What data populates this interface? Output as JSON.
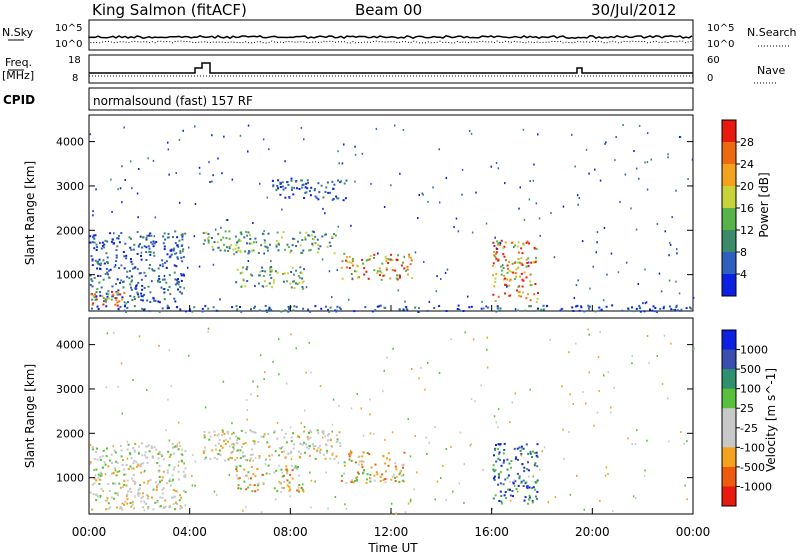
{
  "header": {
    "station": "King Salmon (fitACF)",
    "beam": "Beam 00",
    "date": "30/Jul/2012"
  },
  "side_labels": {
    "nsky": "N.Sky",
    "nsearch": "N.Search",
    "freq_line1": "Freq.",
    "freq_line2": "[MHz]",
    "nave": "Nave",
    "cpid": "CPID"
  },
  "aux_axes": {
    "noise_ticks_left": [
      "10^5",
      "10^0"
    ],
    "noise_ticks_right": [
      "10^5",
      "10^0"
    ],
    "freq_ticks": [
      "18",
      "8"
    ],
    "nave_ticks": [
      "60",
      "0"
    ]
  },
  "cpid_text": "normalsound (fast) 157 RF",
  "chart_data": [
    {
      "type": "heatmap",
      "name": "power",
      "ylabel": "Slant Range [km]",
      "ylim": [
        180,
        4600
      ],
      "yticks": [
        "1000",
        "2000",
        "3000",
        "4000"
      ],
      "xlim": [
        "00:00",
        "24:00"
      ],
      "colorbar": {
        "label": "Power [dB]",
        "ticks": [
          "28",
          "24",
          "20",
          "16",
          "12",
          "8",
          "4"
        ],
        "colors": [
          "#0b20e0",
          "#2f5fbf",
          "#3c8a6a",
          "#58b24a",
          "#c8d23a",
          "#f2a21c",
          "#ee6a10",
          "#e81a10"
        ]
      },
      "regions": [
        {
          "t0": 0.0,
          "t1": 3.8,
          "r0": 400,
          "r1": 2000,
          "level": "low"
        },
        {
          "t0": 0.0,
          "t1": 1.5,
          "r0": 300,
          "r1": 700,
          "level": "high"
        },
        {
          "t0": 4.5,
          "t1": 9.8,
          "r0": 1500,
          "r1": 2000,
          "level": "mid"
        },
        {
          "t0": 7.2,
          "t1": 10.2,
          "r0": 2700,
          "r1": 3200,
          "level": "low"
        },
        {
          "t0": 10.0,
          "t1": 12.8,
          "r0": 900,
          "r1": 1500,
          "level": "high"
        },
        {
          "t0": 5.8,
          "t1": 8.5,
          "r0": 700,
          "r1": 1200,
          "level": "mid"
        },
        {
          "t0": 16.0,
          "t1": 17.8,
          "r0": 400,
          "r1": 1800,
          "level": "high"
        },
        {
          "t0": 0.0,
          "t1": 24.0,
          "r0": 180,
          "r1": 330,
          "level": "low"
        }
      ]
    },
    {
      "type": "heatmap",
      "name": "velocity",
      "ylabel": "Slant Range [km]",
      "ylim": [
        180,
        4600
      ],
      "yticks": [
        "1000",
        "2000",
        "3000",
        "4000"
      ],
      "xlim": [
        "00:00",
        "24:00"
      ],
      "colorbar": {
        "label": "Velocity [m s^-1]",
        "ticks": [
          "1000",
          "500",
          "100",
          "25",
          "-25",
          "-100",
          "-500",
          "-1000"
        ],
        "colors": [
          "#e81a10",
          "#ee5a10",
          "#f2a21c",
          "#c8c8c8",
          "#c8c8c8",
          "#58c03a",
          "#2f9070",
          "#3a4fb0",
          "#0b20e0"
        ]
      },
      "regions": [
        {
          "t0": 0.0,
          "t1": 3.8,
          "r0": 300,
          "r1": 1800,
          "level": "gray"
        },
        {
          "t0": 5.8,
          "t1": 8.5,
          "r0": 700,
          "r1": 1300,
          "level": "orange"
        },
        {
          "t0": 10.0,
          "t1": 12.5,
          "r0": 900,
          "r1": 1600,
          "level": "orange"
        },
        {
          "t0": 4.5,
          "t1": 10.0,
          "r0": 1400,
          "r1": 2100,
          "level": "gray"
        },
        {
          "t0": 16.0,
          "t1": 17.8,
          "r0": 400,
          "r1": 1800,
          "level": "blue"
        }
      ]
    }
  ],
  "x_axis": {
    "ticks": [
      "00:00",
      "04:00",
      "08:00",
      "12:00",
      "16:00",
      "20:00",
      "00:00"
    ],
    "label": "Time UT"
  }
}
